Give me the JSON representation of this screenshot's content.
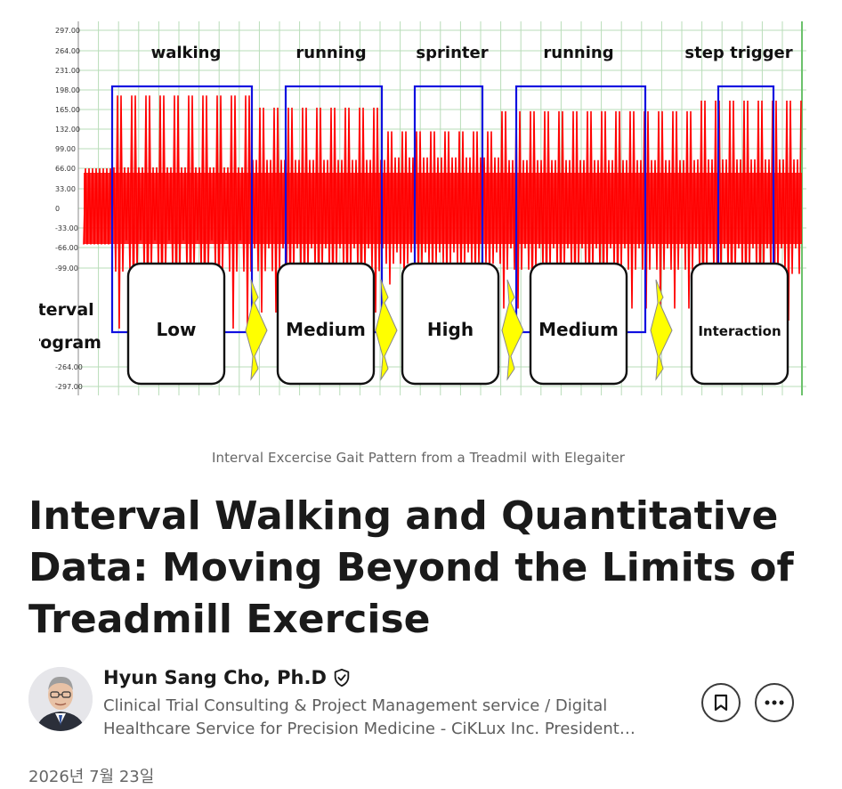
{
  "image": {
    "y_ticks": [
      "297.00",
      "264.00",
      "231.00",
      "198.00",
      "165.00",
      "132.00",
      "99.00",
      "66.00",
      "33.00",
      "0",
      "-33.00",
      "-66.00",
      "-99.00",
      "-264.00",
      "-297.00"
    ],
    "phase_labels": [
      "walking",
      "running",
      "sprinter",
      "running",
      "step trigger"
    ],
    "program_label_1": "Interval",
    "program_label_2": "Program",
    "level_boxes": [
      "Low",
      "Medium",
      "High",
      "Medium",
      "Interaction"
    ],
    "colors": {
      "signal": "#ff0000",
      "phase_box": "#1010e0",
      "arrow": "#ffff00",
      "grid": "#b8dcb8"
    }
  },
  "caption": "Interval Excercise Gait Pattern from a Treadmil with Elegaiter",
  "article": {
    "title": "Interval Walking and Quantitative Data: Moving Beyond the Limits of Treadmill Exercise"
  },
  "author": {
    "name": "Hyun Sang Cho, Ph.D",
    "verified_icon": "shield-check-icon",
    "headline": "Clinical Trial Consulting & Project Management service / Digital Healthcare Service for Precision Medicine - CiKLux Inc. President…"
  },
  "actions": {
    "bookmark_icon": "bookmark-icon",
    "more_icon": "more-horizontal-icon"
  },
  "date": "2026년 7월 23일"
}
